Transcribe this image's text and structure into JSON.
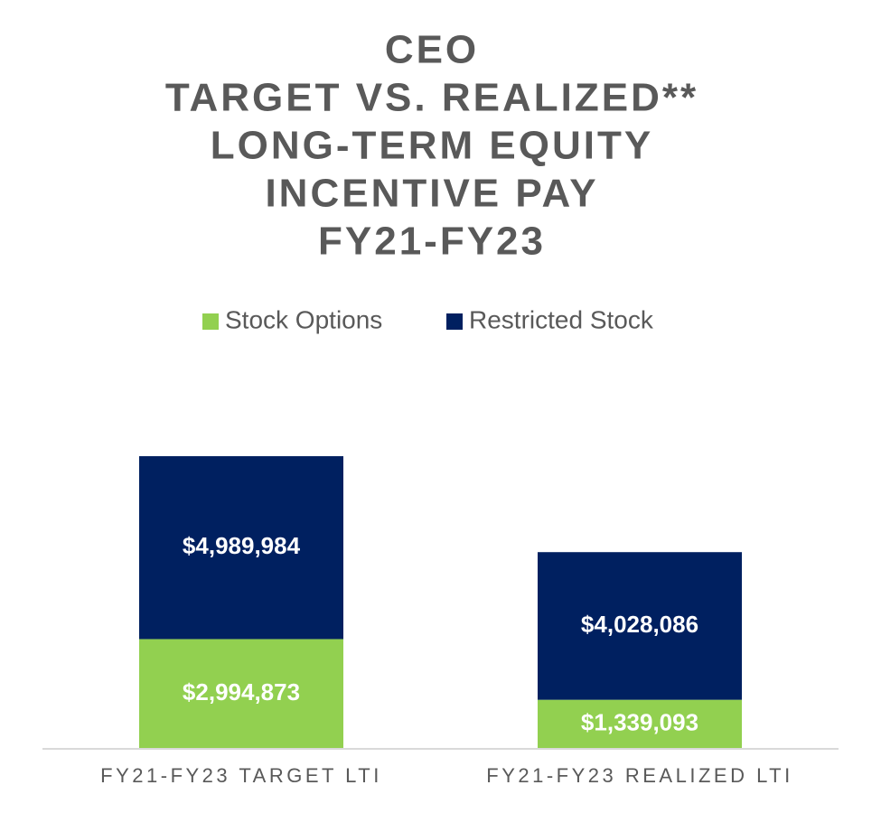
{
  "chart_data": {
    "type": "stacked-bar",
    "title": [
      "CEO",
      "TARGET VS. REALIZED**",
      "LONG-TERM EQUITY",
      "INCENTIVE PAY",
      "FY21-FY23"
    ],
    "categories": [
      "FY21-FY23 TARGET LTI",
      "FY21-FY23 REALIZED LTI"
    ],
    "series": [
      {
        "name": "Stock Options",
        "color": "#92d050",
        "values": [
          2994873,
          1339093
        ],
        "value_labels": [
          "$2,994,873",
          "$1,339,093"
        ]
      },
      {
        "name": "Restricted Stock",
        "color": "#002060",
        "values": [
          4989984,
          4028086
        ],
        "value_labels": [
          "$4,989,984",
          "$4,028,086"
        ]
      }
    ],
    "legend": "top"
  }
}
